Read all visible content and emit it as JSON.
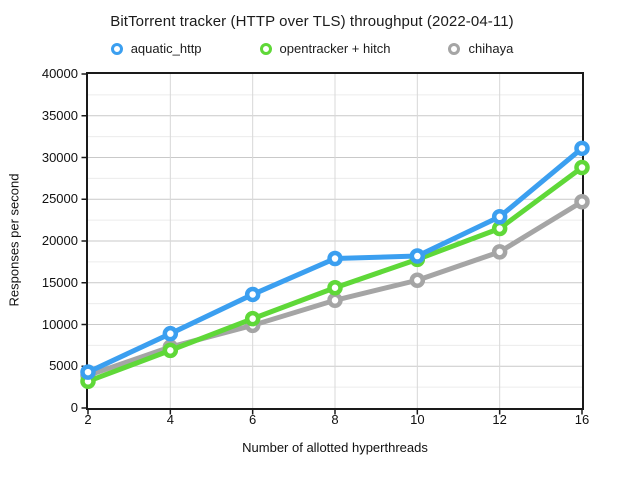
{
  "chart_data": {
    "type": "line",
    "title": "BitTorrent tracker (HTTP over TLS) throughput (2022-04-11)",
    "xlabel": "Number of allotted hyperthreads",
    "ylabel": "Responses per second",
    "categories": [
      2,
      4,
      6,
      8,
      10,
      12,
      16
    ],
    "ylim": [
      0,
      40000
    ],
    "y_major_step": 5000,
    "y_minor_step": 2500,
    "grid": true,
    "legend_position": "top",
    "marker_style": "ring",
    "series": [
      {
        "name": "aquatic_http",
        "color": "#3b9ff0",
        "values": [
          4300,
          8900,
          13600,
          17900,
          18200,
          22900,
          31100
        ]
      },
      {
        "name": "opentracker + hitch",
        "color": "#5fd838",
        "values": [
          3200,
          6900,
          10700,
          14400,
          17800,
          21500,
          28800
        ]
      },
      {
        "name": "chihaya",
        "color": "#a5a5a5",
        "values": [
          3900,
          7300,
          9900,
          12900,
          15300,
          18700,
          24700
        ]
      }
    ],
    "colors": {
      "background": "#ffffff",
      "axis": "#1a1a1a",
      "grid_major": "#c9c9c9",
      "grid_minor": "#ececec",
      "grid_vertical": "#d8d8d8",
      "text": "#111111"
    }
  }
}
